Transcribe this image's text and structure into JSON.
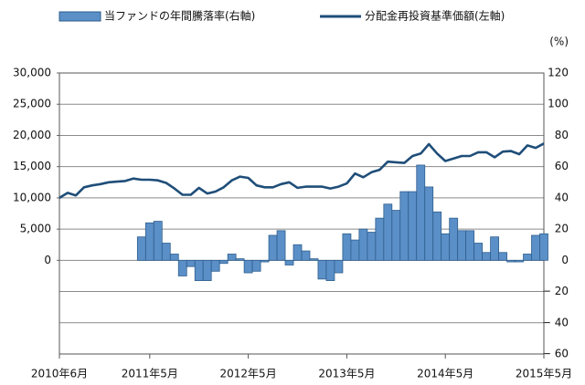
{
  "chart_data": {
    "type": "bar-line",
    "categories": [
      "2010年6月",
      null,
      null,
      null,
      null,
      null,
      null,
      null,
      null,
      null,
      null,
      "2011年5月",
      null,
      null,
      null,
      null,
      null,
      null,
      null,
      null,
      null,
      null,
      null,
      "2012年5月",
      null,
      null,
      null,
      null,
      null,
      null,
      null,
      null,
      null,
      null,
      null,
      "2013年5月",
      null,
      null,
      null,
      null,
      null,
      null,
      null,
      null,
      null,
      null,
      null,
      "2014年5月",
      null,
      null,
      null,
      null,
      null,
      null,
      null,
      null,
      null,
      null,
      null,
      "2015年5月"
    ],
    "series": [
      {
        "name": "当ファンドの年間騰落率(右軸)",
        "type": "bar",
        "axis": "y2",
        "color": "#5b8fc7",
        "values": [
          null,
          null,
          null,
          null,
          null,
          null,
          null,
          null,
          null,
          null,
          15,
          24,
          25,
          11,
          4,
          -10,
          -4,
          -13,
          -13,
          -7,
          -2,
          4,
          1,
          -8,
          -7,
          -1,
          16,
          19,
          -3,
          10,
          6,
          1,
          -12,
          -13,
          -8,
          17,
          13,
          20,
          18,
          27,
          36,
          32,
          44,
          44,
          61,
          47,
          31,
          17,
          27,
          19,
          19,
          11,
          5,
          15,
          5,
          -1,
          -1,
          4,
          16,
          17
        ]
      },
      {
        "name": "分配金再投資基準価額(左軸)",
        "type": "line",
        "color": "#1f4e79",
        "values": [
          10000,
          10800,
          10400,
          11700,
          12000,
          12200,
          12500,
          12600,
          12700,
          13100,
          12900,
          12900,
          12800,
          12400,
          11500,
          10500,
          10500,
          11600,
          10700,
          11000,
          11700,
          12800,
          13400,
          13200,
          12000,
          11700,
          11700,
          12200,
          12500,
          11600,
          11800,
          11800,
          11800,
          11500,
          11800,
          12300,
          13900,
          13300,
          14100,
          14500,
          15800,
          15700,
          15600,
          16700,
          17100,
          18600,
          17100,
          15900,
          16300,
          16700,
          16700,
          17300,
          17300,
          16500,
          17400,
          17500,
          17000,
          18400,
          18000,
          18700
        ]
      }
    ],
    "ylim": [
      -15000,
      30000
    ],
    "yticks": [
      0,
      {
        "value": 5000,
        "label": "5,000"
      },
      {
        "value": 10000,
        "label": "10,000"
      },
      {
        "value": 15000,
        "label": "15,000"
      },
      {
        "value": 20000,
        "label": "20,000"
      },
      {
        "value": 25000,
        "label": "25,000"
      },
      {
        "value": 30000,
        "label": "30,000"
      }
    ],
    "y2lim": [
      -60,
      120
    ],
    "y2ticks": [
      {
        "value": -60,
        "label": "− 60"
      },
      {
        "value": -40,
        "label": "− 40"
      },
      {
        "value": -20,
        "label": "− 20"
      },
      0,
      20,
      40,
      60,
      80,
      100,
      120
    ],
    "y2_unit": "(%)",
    "grid": true
  }
}
